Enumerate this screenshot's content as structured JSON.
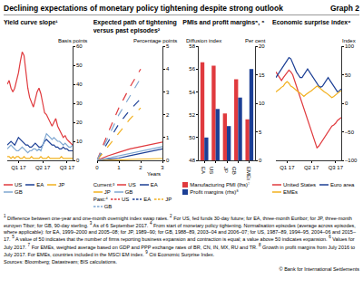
{
  "header": {
    "title": "Declining expectations of monetary policy tightening despite strong outlook",
    "graph": "Graph 2"
  },
  "chart_data": [
    {
      "type": "line",
      "title": "Yield curve slope¹",
      "ylabel": "Basis points",
      "categories": [
        null,
        null,
        null,
        null,
        null,
        null,
        "Q1 17",
        null,
        null,
        null,
        null,
        null,
        null,
        null,
        null,
        null,
        null,
        null,
        null,
        "Q2 17",
        null,
        null,
        null,
        null,
        null,
        null,
        null,
        null,
        null,
        null,
        null,
        null,
        "Q3 17",
        null,
        null,
        null
      ],
      "ylim": [
        0,
        60
      ],
      "yticks": [
        0,
        10,
        20,
        30,
        40,
        50,
        60
      ],
      "grid": false,
      "series": [
        {
          "name": "US",
          "color": "#e03a3e",
          "values": [
            40,
            42,
            38,
            36,
            38,
            42,
            46,
            52,
            57,
            55,
            45,
            38,
            33,
            30,
            28,
            32,
            36,
            38,
            35,
            30,
            25,
            24,
            22,
            20,
            18,
            20,
            22,
            18,
            16,
            14,
            12,
            13,
            11,
            10,
            9,
            8
          ]
        },
        {
          "name": "EA",
          "color": "#1c3f95",
          "values": [
            8,
            9,
            10,
            9,
            8,
            10,
            12,
            11,
            10,
            9,
            8,
            8,
            7,
            7,
            8,
            9,
            8,
            7,
            7,
            8,
            10,
            11,
            10,
            9,
            8,
            8,
            7,
            7,
            6,
            6,
            7,
            6,
            6,
            5,
            5,
            5
          ]
        },
        {
          "name": "JP",
          "color": "#f2b01e",
          "values": [
            2,
            2,
            1,
            2,
            1,
            2,
            2,
            1,
            1,
            2,
            1,
            1,
            1,
            2,
            1,
            1,
            1,
            1,
            2,
            1,
            1,
            1,
            2,
            1,
            1,
            1,
            1,
            1,
            1,
            2,
            1,
            1,
            1,
            1,
            1,
            1
          ]
        },
        {
          "name": "GB",
          "color": "#7fa7d1",
          "values": [
            6,
            7,
            8,
            7,
            6,
            5,
            5,
            6,
            7,
            6,
            5,
            4,
            5,
            5,
            6,
            6,
            5,
            6,
            5,
            8,
            12,
            14,
            13,
            12,
            11,
            12,
            11,
            10,
            10,
            9,
            8,
            9,
            8,
            7,
            7,
            8
          ]
        }
      ]
    },
    {
      "type": "line",
      "title": "Expected path of tightening versus past episodes²",
      "ylabel": "Percentage points",
      "xlabel": "Years",
      "x": [
        0,
        0.5,
        1,
        1.5,
        2,
        2.5,
        3
      ],
      "xlim": [
        0,
        3
      ],
      "xticks": [
        0,
        1,
        2,
        3
      ],
      "ylim": [
        0,
        5
      ],
      "yticks": [
        0,
        1,
        2,
        3,
        4,
        5
      ],
      "grid": false,
      "groups": [
        {
          "name": "Current:³",
          "series": [
            {
              "name": "US",
              "color": "#e03a3e",
              "line_style": "solid",
              "values": [
                0,
                0.2,
                0.35,
                0.5,
                0.6,
                0.7,
                0.8
              ]
            },
            {
              "name": "EA",
              "color": "#1c3f95",
              "line_style": "solid",
              "values": [
                0,
                0.05,
                0.1,
                0.2,
                0.3,
                0.4,
                0.5
              ]
            },
            {
              "name": "JP",
              "color": "#f2b01e",
              "line_style": "solid",
              "values": [
                0,
                0,
                0.02,
                0.04,
                0.05,
                0.07,
                0.08
              ]
            },
            {
              "name": "GB",
              "color": "#7fa7d1",
              "line_style": "solid",
              "values": [
                0,
                0.1,
                0.2,
                0.3,
                0.4,
                0.5,
                0.6
              ]
            }
          ]
        },
        {
          "name": "Past:⁴",
          "series": [
            {
              "name": "US",
              "color": "#e03a3e",
              "line_style": "dash",
              "values": [
                0,
                1.2,
                2.3,
                3.2,
                4.0,
                null,
                null
              ]
            },
            {
              "name": "EA",
              "color": "#1c3f95",
              "line_style": "dash",
              "values": [
                0,
                0.8,
                1.6,
                2.2,
                2.7,
                null,
                null
              ]
            },
            {
              "name": "JP",
              "color": "#f2b01e",
              "line_style": "dash",
              "values": [
                0,
                0.6,
                1.2,
                1.8,
                2.3,
                null,
                null
              ]
            },
            {
              "name": "GB",
              "color": "#7fa7d1",
              "line_style": "dash",
              "values": [
                0,
                1.0,
                2.0,
                2.8,
                3.6,
                null,
                null
              ]
            }
          ]
        }
      ]
    },
    {
      "type": "bar",
      "title": "PMIs and profit margins⁵, ⁶",
      "ylabel": "Diffusion index",
      "y2label": "Per cent",
      "categories": [
        "EA",
        "US",
        "JP",
        "GB",
        "EMEs"
      ],
      "ylim": [
        48,
        58
      ],
      "yticks": [
        48,
        50,
        52,
        54,
        56,
        58
      ],
      "y2lim": [
        0,
        20
      ],
      "y2ticks": [
        0,
        5,
        10,
        15,
        20
      ],
      "grid": false,
      "series": [
        {
          "name": "Manufacturing PMI (lhs)⁷",
          "color": "#e03a3e",
          "values": [
            56.6,
            56.3,
            52.1,
            55.1,
            51.6
          ]
        },
        {
          "name": "Profit margins (rhs)⁸",
          "color": "#1c3f95",
          "axis": "y2",
          "values": [
            4,
            9,
            6,
            11,
            16
          ]
        }
      ]
    },
    {
      "type": "line",
      "title": "Economic surprise index⁹",
      "ylabel": "Index",
      "categories": [
        null,
        null,
        null,
        null,
        null,
        null,
        "Q1 17",
        null,
        null,
        null,
        null,
        null,
        null,
        null,
        null,
        null,
        null,
        null,
        null,
        "Q2 17",
        null,
        null,
        null,
        null,
        null,
        null,
        null,
        null,
        null,
        null,
        null,
        null,
        "Q3 17",
        null,
        null,
        null
      ],
      "ylim": [
        -100,
        100
      ],
      "yticks": [
        {
          "value": -100,
          "label": "–100"
        },
        {
          "value": -50,
          "label": "–50"
        },
        0,
        50,
        100
      ],
      "grid": false,
      "series": [
        {
          "name": "United States",
          "color": "#e03a3e",
          "values": [
            55,
            50,
            45,
            40,
            45,
            50,
            55,
            58,
            55,
            50,
            40,
            30,
            20,
            10,
            0,
            -10,
            -20,
            -30,
            -40,
            -50,
            -60,
            -70,
            -78,
            -75,
            -70,
            -65,
            -60,
            -55,
            -50,
            -45,
            -40,
            -38,
            -35,
            -30,
            -28,
            -25
          ]
        },
        {
          "name": "Euro area",
          "color": "#1c3f95",
          "values": [
            45,
            50,
            55,
            60,
            65,
            70,
            75,
            80,
            78,
            70,
            60,
            55,
            50,
            45,
            45,
            50,
            55,
            60,
            55,
            50,
            45,
            40,
            35,
            30,
            28,
            30,
            35,
            40,
            45,
            40,
            35,
            30,
            25,
            20,
            22,
            25
          ]
        },
        {
          "name": "EMEs",
          "color": "#f2b01e",
          "values": [
            20,
            22,
            25,
            28,
            30,
            35,
            38,
            35,
            30,
            28,
            25,
            22,
            20,
            18,
            15,
            12,
            15,
            18,
            20,
            22,
            25,
            28,
            30,
            28,
            25,
            22,
            20,
            18,
            15,
            12,
            10,
            12,
            15,
            18,
            20,
            22
          ]
        }
      ]
    }
  ],
  "footnotes": [
    {
      "mark": "1",
      "text": "Difference between one-year and one-month overnight index swap rates."
    },
    {
      "mark": "2",
      "text": "For US, fed funds 30-day future; for EA, three-month Euribor; for JP, three-month euroyen Tibor; for GB, 90-day sterling."
    },
    {
      "mark": "3",
      "text": "As of 6 September 2017."
    },
    {
      "mark": "4",
      "text": "From start of monetary policy tightening. Normalisation episodes (average across episodes, where applicable): for EA, 1999–2000 and 2005–08; for JP, 1989–90; for GB, 1988–89, 2003–04 and 2006–07; for US, 1987–89, 1994–95, 2004–06 and 2015–17."
    },
    {
      "mark": "5",
      "text": "A value of 50 indicates that the number of firms reporting business expansion and contraction is equal; a value above 50 indicates expansion."
    },
    {
      "mark": "6",
      "text": "Values for July 2017."
    },
    {
      "mark": "7",
      "text": "For EMEs, weighted average based on GDP and PPP exchange rates of BR, CN, IN, MX, RU and TR."
    },
    {
      "mark": "8",
      "text": "Growth in profit margins from July 2016 to July 2017. For EMEs, countries included in the MSCI EM index."
    },
    {
      "mark": "9",
      "text": "Citi Economic Surprise Index."
    }
  ],
  "sources": "Sources: Bloomberg; Datastream; BIS calculations.",
  "copyright": "© Bank for International Settlements"
}
